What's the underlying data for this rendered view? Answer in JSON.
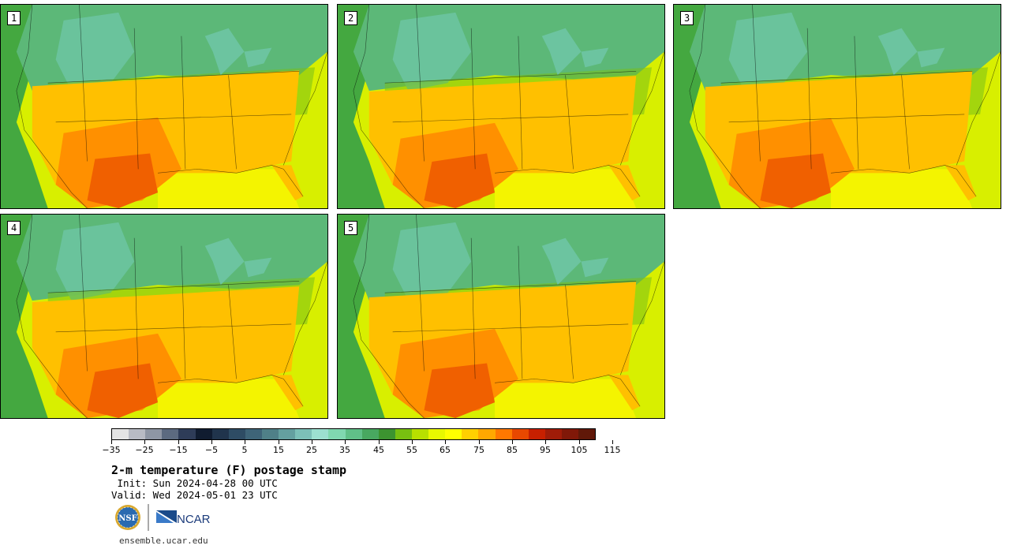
{
  "colorbar": {
    "labels": [
      "−35",
      "−25",
      "−15",
      "−5",
      "5",
      "15",
      "25",
      "35",
      "45",
      "55",
      "65",
      "75",
      "85",
      "95",
      "105",
      "115"
    ],
    "colors": [
      "#e4e4e4",
      "#b8bbc4",
      "#8e96a4",
      "#5c6a80",
      "#2e3c58",
      "#101c30",
      "#20344c",
      "#2e4c64",
      "#3e6478",
      "#4f8088",
      "#64a0a0",
      "#7cc0b8",
      "#9ce0d0",
      "#80d8b0",
      "#60c088",
      "#48a860",
      "#3c9430",
      "#78c010",
      "#b8e000",
      "#e8f800",
      "#ffff00",
      "#ffd000",
      "#ffa800",
      "#ff7800",
      "#e84800",
      "#c82000",
      "#a01c08",
      "#801808",
      "#601808"
    ],
    "units": "F"
  },
  "title": "2-m temperature (F) postage stamp",
  "init_line": " Init: Sun 2024-04-28 00 UTC",
  "valid_line": "Valid: Wed 2024-05-01 23 UTC",
  "logos": {
    "left": "NSF",
    "right": "NCAR"
  },
  "url": "ensemble.ucar.edu",
  "panels": [
    {
      "label": "1"
    },
    {
      "label": "2"
    },
    {
      "label": "3"
    },
    {
      "label": "4"
    },
    {
      "label": "5"
    }
  ],
  "map_colors": {
    "ocean_pacific": "#44a840",
    "ocean_gulf": "#f4f400",
    "ocean_atlantic": "#d8ef00",
    "north": "#5cb878",
    "rockies": "#6cc4a0",
    "midwest": "#78c018",
    "south_warm": "#ffc000",
    "south_hot": "#ff9000",
    "texas_hot": "#f06000"
  }
}
